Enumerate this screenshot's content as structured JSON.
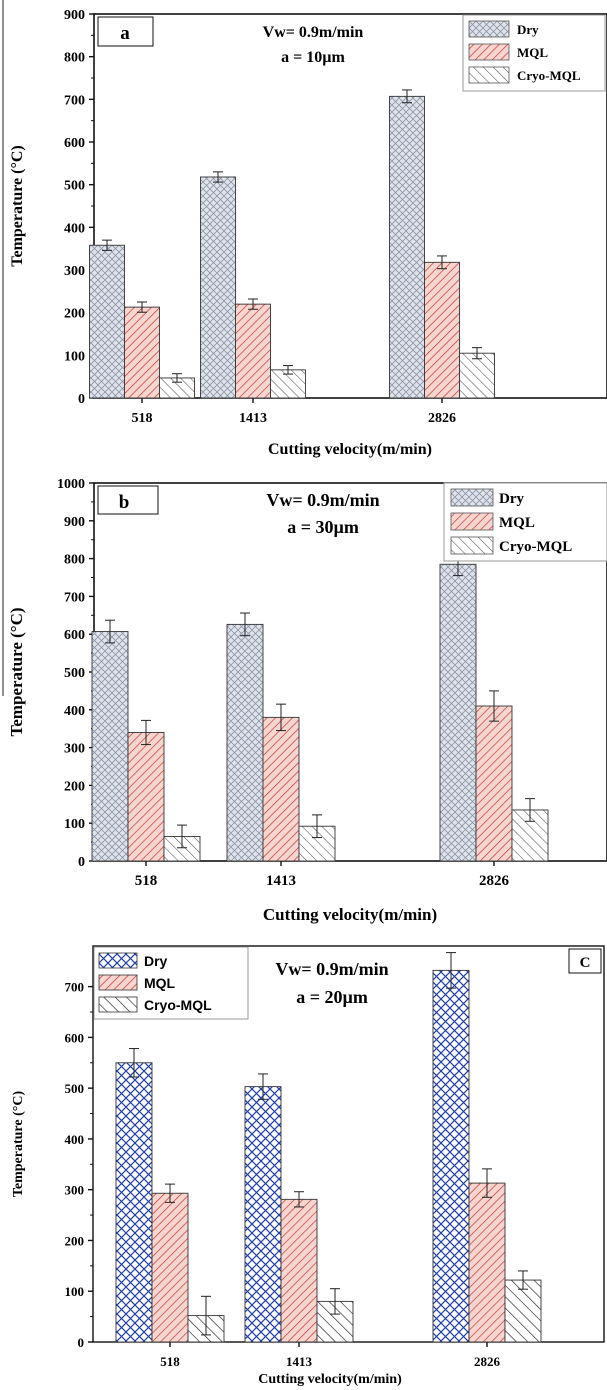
{
  "colors": {
    "dry_fill": "#dfe3ea",
    "dry_hatch": "#8c96a8",
    "mql_fill": "#f7d6d2",
    "mql_hatch": "#c03a2b",
    "cryo_fill": "#ffffff",
    "cryo_hatch": "#555555",
    "dry_fill_c": "#ffffff",
    "dry_hatch_c": "#1f3fa6",
    "cryo_hatch_c": "#222222",
    "axis": "#111111"
  },
  "chart_data": [
    {
      "type": "bar",
      "panel_label": "a",
      "annotation_lines": [
        "Vw= 0.9m/min",
        "a = 10µm"
      ],
      "categories": [
        "518",
        "1413",
        "2826"
      ],
      "series": [
        {
          "name": "Dry",
          "values": [
            358,
            518,
            707
          ],
          "errors": [
            12,
            12,
            15
          ]
        },
        {
          "name": "MQL",
          "values": [
            213,
            220,
            318
          ],
          "errors": [
            12,
            12,
            15
          ]
        },
        {
          "name": "Cryo-MQL",
          "values": [
            47,
            66,
            105
          ],
          "errors": [
            10,
            10,
            13
          ]
        }
      ],
      "xlabel": "Cutting velocity(m/min)",
      "ylabel": "Temperature (°C)",
      "ylim": [
        0,
        900
      ],
      "yticks": [
        "0",
        "100",
        "200",
        "300",
        "400",
        "500",
        "600",
        "700",
        "800",
        "900"
      ],
      "legend": "top-right",
      "grid": false
    },
    {
      "type": "bar",
      "panel_label": "b",
      "annotation_lines": [
        "Vw= 0.9m/min",
        "a = 30µm"
      ],
      "categories": [
        "518",
        "1413",
        "2826"
      ],
      "series": [
        {
          "name": "Dry",
          "values": [
            607,
            626,
            785
          ],
          "errors": [
            30,
            30,
            30
          ]
        },
        {
          "name": "MQL",
          "values": [
            340,
            380,
            410
          ],
          "errors": [
            32,
            35,
            40
          ]
        },
        {
          "name": "Cryo-MQL",
          "values": [
            65,
            92,
            135
          ],
          "errors": [
            30,
            30,
            30
          ]
        }
      ],
      "xlabel": "Cutting velocity(m/min)",
      "ylabel": "Temperature (°C)",
      "ylim": [
        0,
        1000
      ],
      "yticks": [
        "0",
        "100",
        "200",
        "300",
        "400",
        "500",
        "600",
        "700",
        "800",
        "900",
        "1000"
      ],
      "legend": "top-right",
      "grid": false
    },
    {
      "type": "bar",
      "panel_label": "C",
      "annotation_lines": [
        "Vw= 0.9m/min",
        "a = 20µm"
      ],
      "categories": [
        "518",
        "1413",
        "2826"
      ],
      "series": [
        {
          "name": "Dry",
          "values": [
            550,
            503,
            732
          ],
          "errors": [
            28,
            25,
            35
          ]
        },
        {
          "name": "MQL",
          "values": [
            293,
            281,
            313
          ],
          "errors": [
            18,
            15,
            28
          ]
        },
        {
          "name": "Cryo-MQL",
          "values": [
            52,
            80,
            122
          ],
          "errors": [
            38,
            25,
            18
          ]
        }
      ],
      "xlabel": "Cutting velocity(m/min)",
      "ylabel": "Temperature (°C)",
      "ylim": [
        0,
        780
      ],
      "yticks": [
        "0",
        "100",
        "200",
        "300",
        "400",
        "500",
        "600",
        "700"
      ],
      "legend": "top-left",
      "grid": false
    }
  ]
}
